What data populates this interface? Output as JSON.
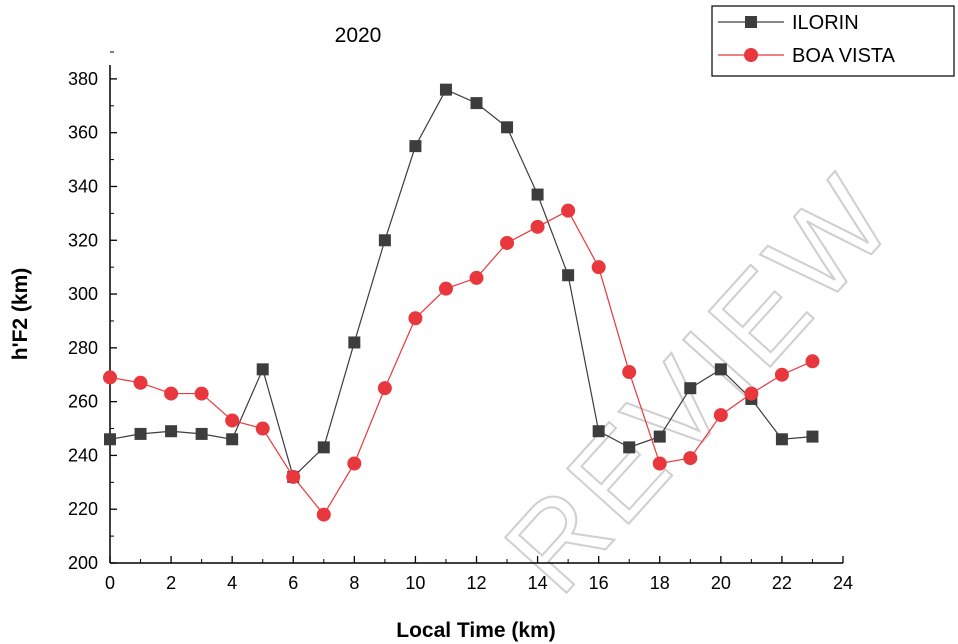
{
  "chart_data": {
    "type": "line",
    "title": "2020",
    "xlabel": "Local Time (km)",
    "ylabel": "h'F2 (km)",
    "xlim": [
      0,
      24
    ],
    "ylim": [
      200,
      390
    ],
    "xticks": [
      0,
      2,
      4,
      6,
      8,
      10,
      12,
      14,
      16,
      18,
      20,
      22,
      24
    ],
    "yticks": [
      200,
      220,
      240,
      260,
      280,
      300,
      320,
      340,
      360,
      380
    ],
    "grid": false,
    "legend_position": "top-right",
    "x": [
      0,
      1,
      2,
      3,
      4,
      5,
      6,
      7,
      8,
      9,
      10,
      11,
      12,
      13,
      14,
      15,
      16,
      17,
      18,
      19,
      20,
      21,
      22,
      23
    ],
    "series": [
      {
        "name": "ILORIN",
        "color": "#3d3d3d",
        "marker": "square",
        "values": [
          246,
          248,
          249,
          248,
          246,
          272,
          232,
          243,
          282,
          320,
          355,
          376,
          371,
          362,
          337,
          307,
          249,
          243,
          247,
          265,
          272,
          261,
          246,
          247
        ]
      },
      {
        "name": "BOA VISTA",
        "color": "#e8383d",
        "marker": "circle",
        "values": [
          269,
          267,
          263,
          263,
          253,
          250,
          232,
          218,
          237,
          265,
          291,
          302,
          306,
          319,
          325,
          331,
          310,
          271,
          237,
          239,
          255,
          263,
          270,
          275
        ]
      }
    ],
    "watermark": "REVIEW"
  }
}
